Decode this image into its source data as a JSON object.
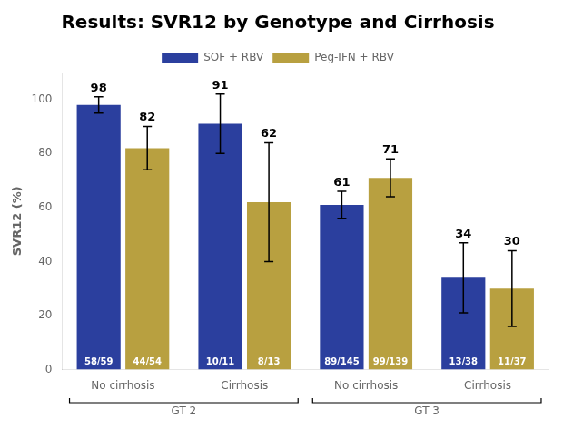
{
  "chart_data": {
    "type": "bar",
    "title": "Results: SVR12 by Genotype and Cirrhosis",
    "ylabel": "SVR12 (%)",
    "categories": [
      "No cirrhosis",
      "Cirrhosis",
      "No cirrhosis",
      "Cirrhosis"
    ],
    "category_groups": [
      {
        "label": "GT 2",
        "count": 2
      },
      {
        "label": "GT 3",
        "count": 2
      }
    ],
    "series": [
      {
        "name": "SOF + RBV",
        "color": "#2b3f9e",
        "values": [
          98,
          91,
          61,
          34
        ],
        "errors": [
          3,
          11,
          5,
          13
        ],
        "inside_labels": [
          "58/59",
          "10/11",
          "89/145",
          "13/38"
        ]
      },
      {
        "name": "Peg-IFN + RBV",
        "color": "#b8a040",
        "values": [
          82,
          62,
          71,
          30
        ],
        "errors": [
          8,
          22,
          7,
          14
        ],
        "inside_labels": [
          "44/54",
          "8/13",
          "99/139",
          "11/37"
        ]
      }
    ],
    "ylim": [
      0,
      110
    ],
    "yticks": [
      0,
      20,
      40,
      60,
      80,
      100
    ],
    "grid": false,
    "legend": "top",
    "data_labels": true
  }
}
